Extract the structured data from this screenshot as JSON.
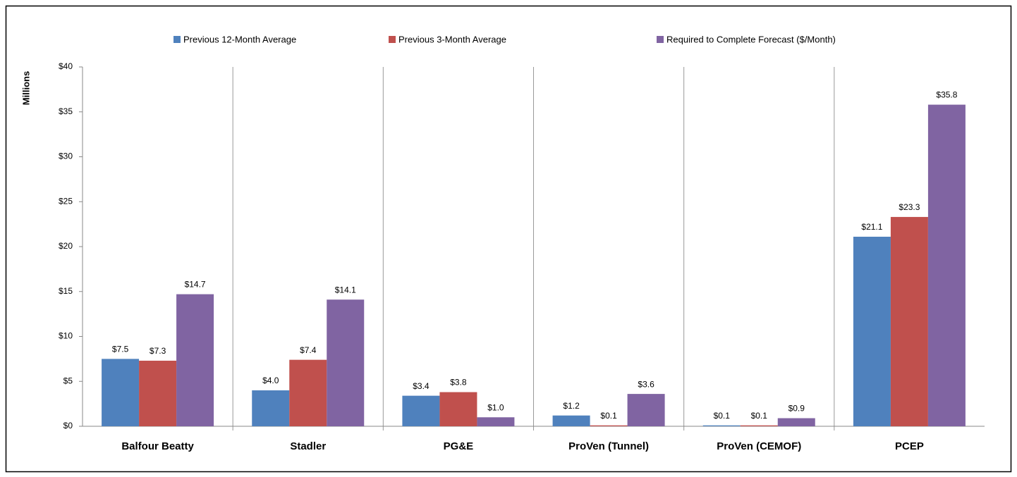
{
  "chart_data": {
    "type": "bar",
    "y_label": "Millions",
    "categories": [
      "Balfour Beatty",
      "Stadler",
      "PG&E",
      "ProVen (Tunnel)",
      "ProVen (CEMOF)",
      "PCEP"
    ],
    "series": [
      {
        "name": "Previous 12-Month Average",
        "color": "#4f81bd",
        "values": [
          7.5,
          4.0,
          3.4,
          1.2,
          0.1,
          21.1
        ],
        "value_labels": [
          "$7.5",
          "$4.0",
          "$3.4",
          "$1.2",
          "$0.1",
          "$21.1"
        ]
      },
      {
        "name": "Previous 3-Month Average",
        "color": "#c0504d",
        "values": [
          7.3,
          7.4,
          3.8,
          0.1,
          0.1,
          23.3
        ],
        "value_labels": [
          "$7.3",
          "$7.4",
          "$3.8",
          "$0.1",
          "$0.1",
          "$23.3"
        ]
      },
      {
        "name": "Required to Complete Forecast ($/Month)",
        "color": "#8064a2",
        "values": [
          14.7,
          14.1,
          1.0,
          3.6,
          0.9,
          35.8
        ],
        "value_labels": [
          "$14.7",
          "$14.1",
          "$1.0",
          "$3.6",
          "$0.9",
          "$35.8"
        ]
      }
    ],
    "ylim": [
      0,
      40
    ],
    "yticks": [
      {
        "value": 0,
        "label": "$0"
      },
      {
        "value": 5,
        "label": "$5"
      },
      {
        "value": 10,
        "label": "$10"
      },
      {
        "value": 15,
        "label": "$15"
      },
      {
        "value": 20,
        "label": "$20"
      },
      {
        "value": 25,
        "label": "$25"
      },
      {
        "value": 30,
        "label": "$30"
      },
      {
        "value": 35,
        "label": "$35"
      },
      {
        "value": 40,
        "label": "$40"
      }
    ],
    "legend": "top"
  }
}
